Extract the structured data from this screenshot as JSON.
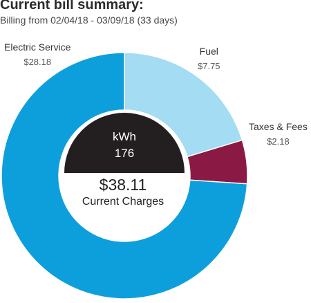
{
  "header": {
    "title": "Current bill summary:",
    "subtitle": "Billing from 02/04/18 - 03/09/18 (33 days)"
  },
  "chart_data": {
    "type": "pie",
    "categories": [
      "Electric Service",
      "Fuel",
      "Taxes & Fees"
    ],
    "values": [
      28.18,
      7.75,
      2.18
    ],
    "value_labels": [
      "$28.18",
      "$7.75",
      "$2.18"
    ],
    "colors": [
      "#0d9fdc",
      "#a3dcf3",
      "#8a1a44"
    ]
  },
  "center": {
    "usage_unit": "kWh",
    "usage_value": "176",
    "total": "$38.11",
    "total_label": "Current Charges"
  },
  "colors": {
    "badge": "#231f20",
    "divider": "#ffffff"
  }
}
